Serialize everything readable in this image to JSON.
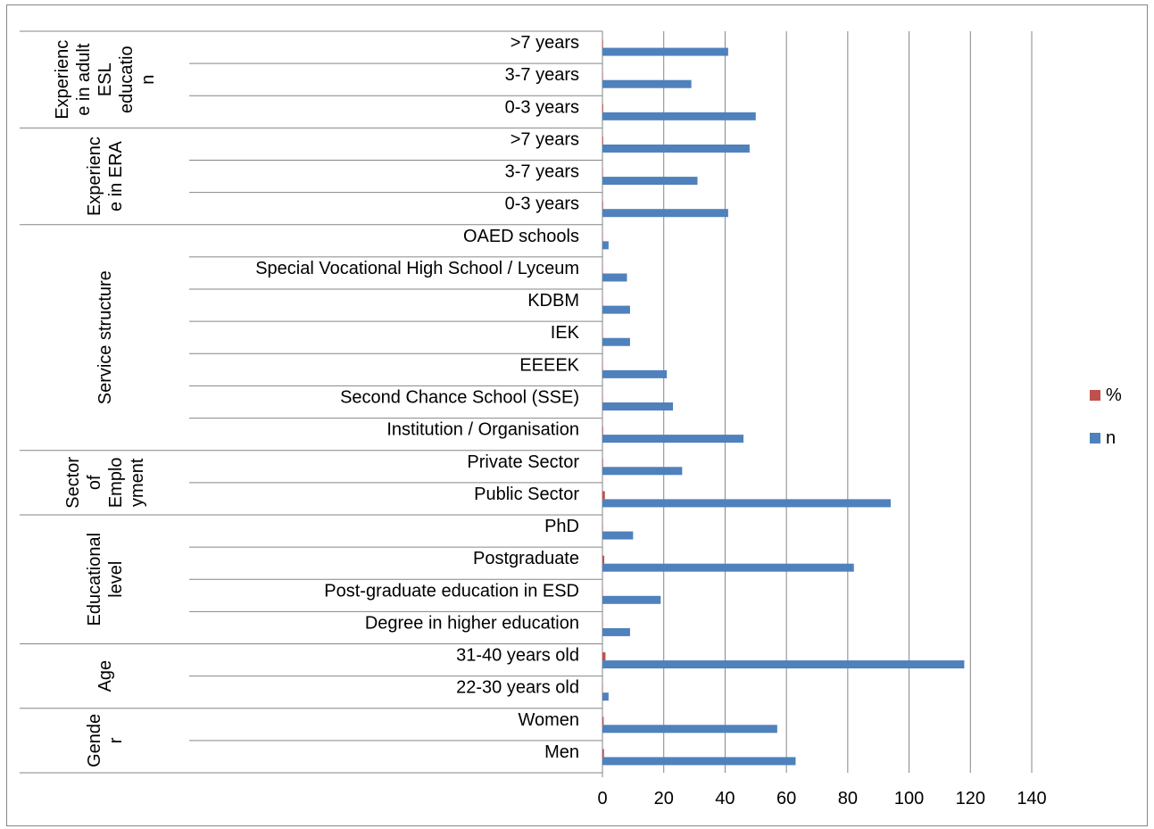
{
  "chart_data": {
    "type": "bar",
    "orientation": "horizontal",
    "x_axis": {
      "min": 0,
      "max": 140,
      "step": 20,
      "ticks": [
        "0",
        "20",
        "40",
        "60",
        "80",
        "100",
        "120",
        "140"
      ]
    },
    "grid": "vertical",
    "legend_position": "right",
    "legend": [
      {
        "label": "%",
        "color": "#C0504D"
      },
      {
        "label": "n",
        "color": "#4F81BD"
      }
    ],
    "groups": [
      {
        "label": "Experienc e in adult ESL educatio n",
        "categories": [
          ">7 years",
          "3-7 years",
          "0-3 years"
        ]
      },
      {
        "label": "Experienc e in ERA",
        "categories": [
          ">7 years",
          "3-7 years",
          "0-3 years"
        ]
      },
      {
        "label": "Service structure",
        "categories": [
          "OAED schools",
          "Special Vocational High School / Lyceum",
          "KDBM",
          "IEK",
          "EEEEK",
          "Second Chance School (SSE)",
          "Institution / Organisation"
        ]
      },
      {
        "label": "Sector of Emplo yment",
        "categories": [
          "Private Sector",
          "Public Sector"
        ]
      },
      {
        "label": "Educational level",
        "categories": [
          "PhD",
          "Postgraduate",
          "Post-graduate education in ESD",
          "Degree in higher education"
        ]
      },
      {
        "label": "Age",
        "categories": [
          "31-40 years old",
          "22-30 years old"
        ]
      },
      {
        "label": "Gende r",
        "categories": [
          "Women",
          "Men"
        ]
      }
    ],
    "series": [
      {
        "name": "%",
        "color": "#C0504D",
        "values": [
          0.2,
          0.15,
          0.25,
          0.24,
          0.16,
          0.2,
          0.01,
          0.04,
          0.05,
          0.05,
          0.1,
          0.11,
          0.22,
          0.2,
          0.8,
          0.05,
          0.6,
          0.1,
          0.05,
          1.0,
          0.02,
          0.4,
          0.5
        ]
      },
      {
        "name": "n",
        "color": "#4F81BD",
        "values": [
          41,
          29,
          50,
          48,
          31,
          41,
          2,
          8,
          9,
          9,
          21,
          23,
          46,
          26,
          94,
          10,
          82,
          19,
          9,
          118,
          2,
          57,
          63
        ]
      }
    ]
  }
}
